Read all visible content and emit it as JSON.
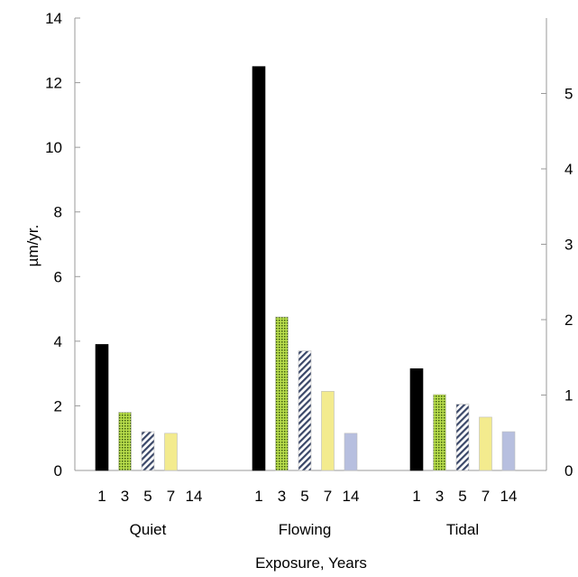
{
  "chart_data": {
    "type": "bar",
    "title": "",
    "xlabel": "Exposure, Years",
    "ylabel": "µm/yr.",
    "ylim": [
      0,
      14
    ],
    "yticks": [
      "0",
      "2",
      "4",
      "6",
      "8",
      "10",
      "12",
      "14"
    ],
    "secondary_yticks": [
      "0",
      "1",
      "2",
      "3",
      "4",
      "5"
    ],
    "secondary_ylim": [
      0,
      6
    ],
    "groups": [
      "Quiet",
      "Flowing",
      "Tidal"
    ],
    "categories": [
      "1",
      "3",
      "5",
      "7",
      "14"
    ],
    "series_colors": [
      "#000000",
      "#9ccc2a",
      "#7a86a8",
      "#f3eb8e",
      "#b7bfdf"
    ],
    "series_patterns": [
      "solid",
      "dots",
      "diagonal-hatch",
      "solid",
      "solid"
    ],
    "values": {
      "Quiet": [
        3.9,
        1.8,
        1.2,
        1.15,
        null
      ],
      "Flowing": [
        12.5,
        4.75,
        3.7,
        2.45,
        1.15
      ],
      "Tidal": [
        3.15,
        2.35,
        2.05,
        1.65,
        1.2
      ]
    },
    "grid": false,
    "legend": "none"
  }
}
